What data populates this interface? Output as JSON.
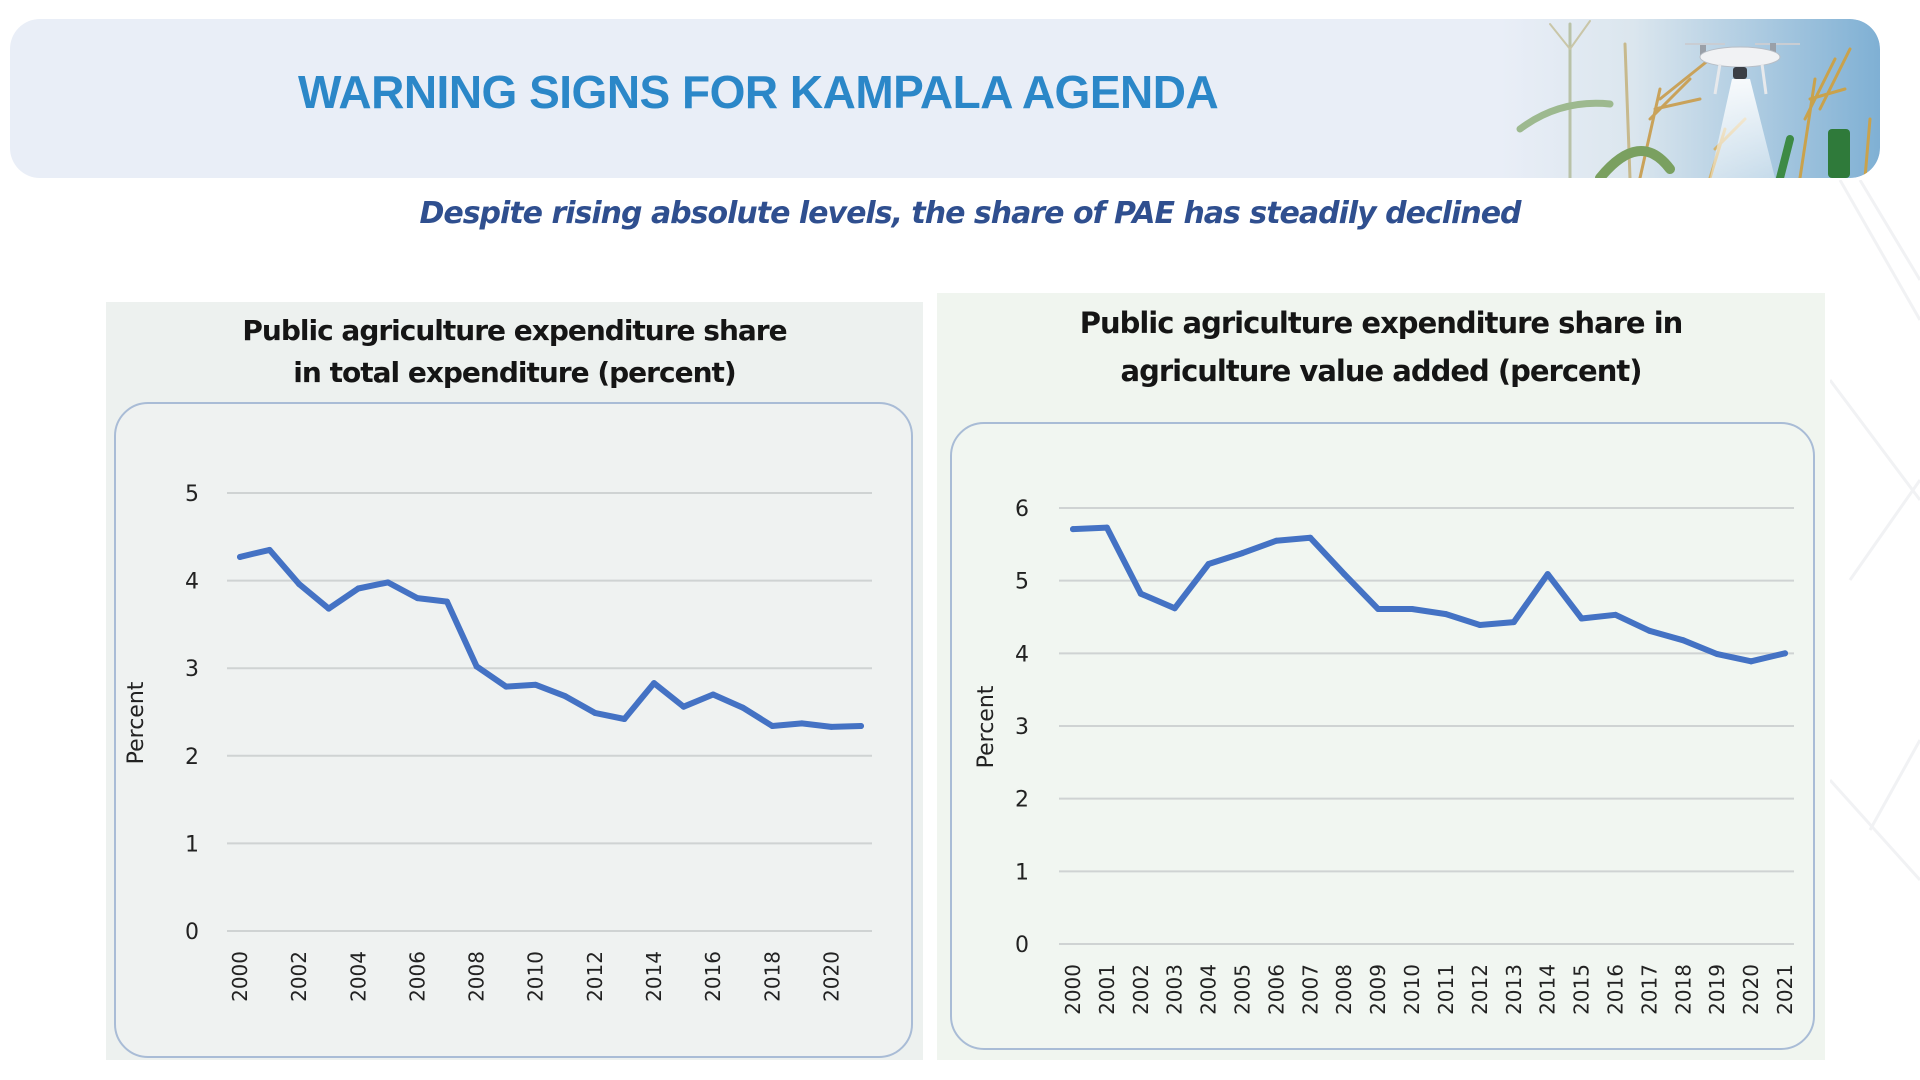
{
  "header": {
    "title": "WARNING SIGNS FOR KAMPALA AGENDA",
    "photo": "drone-over-maize-field-image"
  },
  "subtitle": "Despite rising absolute levels, the share of PAE has steadily declined",
  "colors": {
    "title": "#2b87c8",
    "subtitle": "#2f4f8f",
    "line": "#4472c4",
    "grid": "#cfd3d3"
  },
  "chart_data": [
    {
      "type": "line",
      "title": "Public agriculture expenditure share in total expenditure (percent)",
      "title_lines": [
        "Public agriculture expenditure share",
        "in total expenditure (percent)"
      ],
      "xlabel": "",
      "ylabel": "Percent",
      "ylim": [
        0,
        5
      ],
      "yticks": [
        0,
        1,
        2,
        3,
        4,
        5
      ],
      "grid": true,
      "legend": "none",
      "x": [
        2000,
        2001,
        2002,
        2003,
        2004,
        2005,
        2006,
        2007,
        2008,
        2009,
        2010,
        2011,
        2012,
        2013,
        2014,
        2015,
        2016,
        2017,
        2018,
        2019,
        2020,
        2021
      ],
      "xtick_labels": [
        "2000",
        "2002",
        "2004",
        "2006",
        "2008",
        "2010",
        "2012",
        "2014",
        "2016",
        "2018",
        "2020"
      ],
      "series": [
        {
          "name": "Share in total expenditure",
          "values": [
            4.27,
            4.35,
            3.96,
            3.68,
            3.91,
            3.98,
            3.8,
            3.76,
            3.02,
            2.79,
            2.81,
            2.68,
            2.49,
            2.42,
            2.83,
            2.56,
            2.7,
            2.55,
            2.34,
            2.37,
            2.33,
            2.34
          ]
        }
      ]
    },
    {
      "type": "line",
      "title": "Public agriculture expenditure share in agriculture value added (percent)",
      "title_lines": [
        "Public agriculture expenditure share in",
        "agriculture value added (percent)"
      ],
      "xlabel": "",
      "ylabel": "Percent",
      "ylim": [
        0,
        6
      ],
      "yticks": [
        0,
        1,
        2,
        3,
        4,
        5,
        6
      ],
      "grid": true,
      "legend": "none",
      "x": [
        2000,
        2001,
        2002,
        2003,
        2004,
        2005,
        2006,
        2007,
        2008,
        2009,
        2010,
        2011,
        2012,
        2013,
        2014,
        2015,
        2016,
        2017,
        2018,
        2019,
        2020,
        2021
      ],
      "xtick_labels": [
        "2000",
        "2001",
        "2002",
        "2003",
        "2004",
        "2005",
        "2006",
        "2007",
        "2008",
        "2009",
        "2010",
        "2011",
        "2012",
        "2013",
        "2014",
        "2015",
        "2016",
        "2017",
        "2018",
        "2019",
        "2020",
        "2021"
      ],
      "series": [
        {
          "name": "Share in agriculture value added",
          "values": [
            5.71,
            5.73,
            4.82,
            4.62,
            5.23,
            5.38,
            5.55,
            5.59,
            5.09,
            4.61,
            4.61,
            4.54,
            4.39,
            4.43,
            5.09,
            4.48,
            4.53,
            4.31,
            4.18,
            3.99,
            3.89,
            4.0
          ]
        }
      ]
    }
  ]
}
